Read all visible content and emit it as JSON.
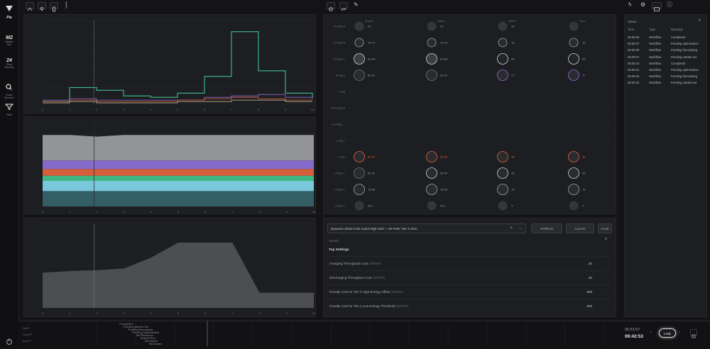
{
  "nav": {
    "items": [
      {
        "big": "Pie",
        "small": ""
      },
      {
        "big": "M2",
        "small": "Market\nSell"
      },
      {
        "big": "24",
        "small": "Short\nRevolve"
      },
      {
        "big": "",
        "small": "Zoom\nRevolve"
      },
      {
        "big": "",
        "small": "Filter"
      }
    ]
  },
  "header": {
    "left_icons": [
      "cursor-icon",
      "pin-icon",
      "battery-icon",
      "signal-icon"
    ],
    "mid_icons": [
      "target-icon",
      "chart-icon",
      "edit-icon"
    ],
    "right_icons": [
      "flash-icon",
      "settings-icon",
      "display-icon",
      "info-icon"
    ]
  },
  "matrix": {
    "columns": [
      "Month",
      "Value",
      "Week",
      "Hour"
    ],
    "rows": [
      {
        "label": "R-Rate A",
        "vals": [
          "20",
          "20",
          "13",
          ""
        ]
      },
      {
        "label": "R-Rate B",
        "vals": [
          "14  14",
          "14  14",
          "16",
          "16"
        ]
      },
      {
        "label": "R-Rate C",
        "vals": [
          "61  B3",
          "61  B3",
          "B3",
          "B3"
        ]
      },
      {
        "label": "R-lag A",
        "vals": [
          "60  20",
          "60  20",
          "20",
          "20"
        ]
      },
      {
        "label": "P  lag",
        "vals": [
          "",
          "",
          "",
          ""
        ]
      },
      {
        "label": "R-energy  B",
        "vals": [
          "",
          "",
          "",
          ""
        ]
      },
      {
        "label": "L-energy  ...",
        "vals": [
          "",
          "",
          "",
          ""
        ]
      },
      {
        "label": "L-lag C",
        "vals": [
          "",
          "",
          "",
          ""
        ]
      },
      {
        "label": "L-Tan",
        "vals": [
          "60  40",
          "60  40",
          "40",
          "40"
        ]
      },
      {
        "label": "L-Rate L",
        "vals": [
          "60  40",
          "60  40",
          "40",
          "40"
        ]
      },
      {
        "label": "L-Rate L",
        "vals": [
          "15  88",
          "15  88",
          "15",
          "15"
        ]
      },
      {
        "label": "L-Rate L",
        "vals": [
          "40  1",
          "40  1",
          "4",
          "4"
        ]
      }
    ]
  },
  "settings": {
    "dropdown_value": "Dynamic 2018-2-CE Avoid High SOC + 20 FHB: Tier 2 SOC",
    "buttons": [
      "SPREAD",
      "CLEAR",
      "SAVE"
    ],
    "search_placeholder": "Search",
    "section_title": "Top Settings",
    "rows": [
      {
        "label": "Charging Throughput Cost",
        "unit": "($/MWh)",
        "value": "20"
      },
      {
        "label": "Discharging Throughput Cost",
        "unit": "($/MWh)",
        "value": "20"
      },
      {
        "label": "Penalty Cost for Tier 2 High Energy Offset",
        "unit": "($/MWh)",
        "value": "200"
      },
      {
        "label": "Penalty Cost for Tier 2 Low Energy Threshold",
        "unit": "($/MWh)",
        "value": "200"
      }
    ]
  },
  "log": {
    "header": "Status",
    "columns": [
      "Time",
      "Type",
      "Message"
    ],
    "rows": [
      [
        "05:50:08",
        "Workflow",
        "Completed"
      ],
      [
        "06:00:07",
        "Workflow",
        "Pending optimization"
      ],
      [
        "06:00:08",
        "Workflow",
        "Pending forecasting"
      ],
      [
        "06:00:07",
        "Workflow",
        "Pending market set"
      ],
      [
        "06:00:10",
        "Workflow",
        "Completed"
      ],
      [
        "06:00:01",
        "Workflow",
        "Pending optimization"
      ],
      [
        "06:00:03",
        "Workflow",
        "Pending forecasting"
      ],
      [
        "06:00:02",
        "Workflow",
        "Pending market set"
      ]
    ]
  },
  "timeline": {
    "labels": [
      "Completed",
      "Pending Market Set",
      "Pending forecasting",
      "Pending Optimization",
      "Bid Received",
      "Market Run",
      "Bid Award",
      "Bid Award"
    ],
    "left_labels": [
      "Set P",
      "Cond P",
      "Acct P"
    ],
    "time_top": "05:51:07",
    "time_bottom": "06:42:53",
    "live_label": "LIVE"
  },
  "colors": {
    "green": "#3fbf8a",
    "purple": "#8b6fd6",
    "orange": "#e2623c",
    "cyan": "#7fd0e6",
    "grey": "#9a9b9d",
    "dark": "#4a4c50"
  },
  "chart_data": [
    {
      "type": "line",
      "x": [
        0,
        1,
        2,
        3,
        4,
        5,
        6,
        7,
        8,
        9,
        10
      ],
      "series": [
        {
          "values": [
            2,
            12,
            10,
            6,
            5,
            8,
            20,
            52,
            24,
            8,
            4
          ]
        },
        {
          "values": [
            3,
            4,
            3,
            3,
            3,
            3,
            5,
            6,
            7,
            5,
            4
          ]
        },
        {
          "values": [
            2,
            3,
            2,
            2,
            2,
            3,
            4,
            5,
            4,
            3,
            3
          ]
        },
        {
          "values": [
            1,
            2,
            1,
            1,
            1,
            2,
            2,
            3,
            3,
            2,
            2
          ]
        }
      ],
      "ylim": [
        0,
        60
      ],
      "ytick_labels": [
        "",
        "",
        "",
        "",
        "",
        ""
      ],
      "xtick_labels": [
        "0",
        "1",
        "2",
        "3",
        "4",
        "5",
        "6",
        "7",
        "8",
        "9",
        "10"
      ]
    },
    {
      "type": "area",
      "x": [
        0,
        1,
        2,
        3,
        4,
        5,
        6,
        7,
        8,
        9,
        10
      ],
      "ylim": [
        0,
        100
      ],
      "series": [
        {
          "values": [
            30,
            30,
            28,
            30,
            30,
            30,
            30,
            30,
            30,
            30,
            30
          ]
        },
        {
          "values": [
            10,
            10,
            10,
            10,
            10,
            10,
            10,
            10,
            10,
            10,
            10
          ]
        },
        {
          "values": [
            8,
            8,
            8,
            8,
            8,
            8,
            8,
            8,
            8,
            8,
            8
          ]
        },
        {
          "values": [
            6,
            6,
            6,
            6,
            6,
            6,
            6,
            6,
            6,
            6,
            6
          ]
        },
        {
          "values": [
            12,
            12,
            12,
            12,
            12,
            12,
            12,
            12,
            12,
            12,
            12
          ]
        },
        {
          "values": [
            18,
            18,
            18,
            18,
            18,
            18,
            18,
            18,
            18,
            18,
            18
          ]
        }
      ],
      "ytick_labels": [
        "",
        "",
        "",
        "",
        "",
        "",
        ""
      ],
      "xtick_labels": [
        "0",
        "1",
        "2",
        "3",
        "4",
        "5",
        "6",
        "7",
        "8",
        "9",
        "10"
      ]
    },
    {
      "type": "area",
      "x": [
        0,
        1,
        2,
        3,
        4,
        5,
        6,
        7,
        8,
        9,
        10
      ],
      "values": [
        42,
        44,
        45,
        47,
        60,
        78,
        78,
        78,
        18,
        18,
        18
      ],
      "ylim": [
        0,
        100
      ],
      "ytick_labels": [
        "",
        "",
        "",
        "",
        "",
        "",
        ""
      ],
      "xtick_labels": [
        "0",
        "1",
        "2",
        "3",
        "4",
        "5",
        "6",
        "7",
        "8",
        "9",
        "10"
      ]
    }
  ]
}
